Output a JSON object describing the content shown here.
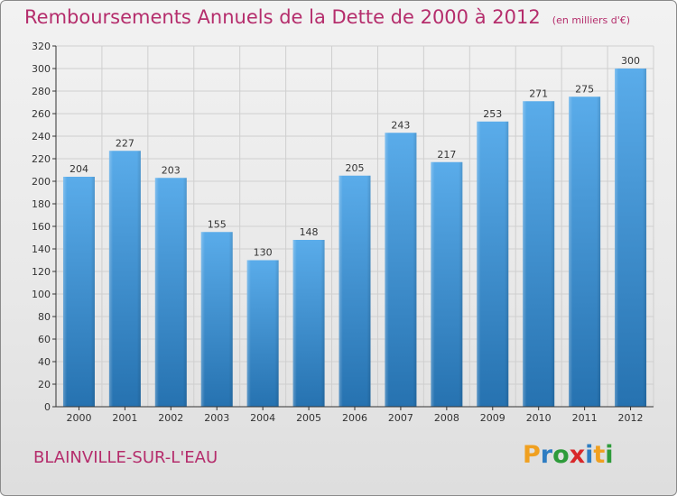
{
  "title": "Remboursements Annuels de la Dette de 2000 à 2012",
  "title_unit": "(en milliers d'€)",
  "city": "BLAINVILLE-SUR-L'EAU",
  "logo": {
    "text": "Proxiti",
    "letters": [
      "P",
      "r",
      "o",
      "x",
      "i",
      "t",
      "i"
    ],
    "colors": [
      "#f0a020",
      "#2e7dc2",
      "#2e9b3a",
      "#d8282a",
      "#2e7dc2",
      "#f0a020",
      "#2e9b3a"
    ]
  },
  "colors": {
    "bar_top": "#5aacea",
    "bar_bottom": "#2672b0",
    "title": "#b52d6c",
    "axis": "#333333",
    "grid": "#cfcfcf"
  },
  "chart_data": {
    "type": "bar",
    "title": "Remboursements Annuels de la Dette de 2000 à 2012",
    "categories": [
      "2000",
      "2001",
      "2002",
      "2003",
      "2004",
      "2005",
      "2006",
      "2007",
      "2008",
      "2009",
      "2010",
      "2011",
      "2012"
    ],
    "values": [
      204,
      227,
      203,
      155,
      130,
      148,
      205,
      243,
      217,
      253,
      271,
      275,
      300
    ],
    "ylim": [
      0,
      320
    ],
    "yticks": [
      0,
      20,
      40,
      60,
      80,
      100,
      120,
      140,
      160,
      180,
      200,
      220,
      240,
      260,
      280,
      300,
      320
    ],
    "xlabel": "",
    "ylabel": "",
    "grid": true,
    "data_labels": true
  }
}
